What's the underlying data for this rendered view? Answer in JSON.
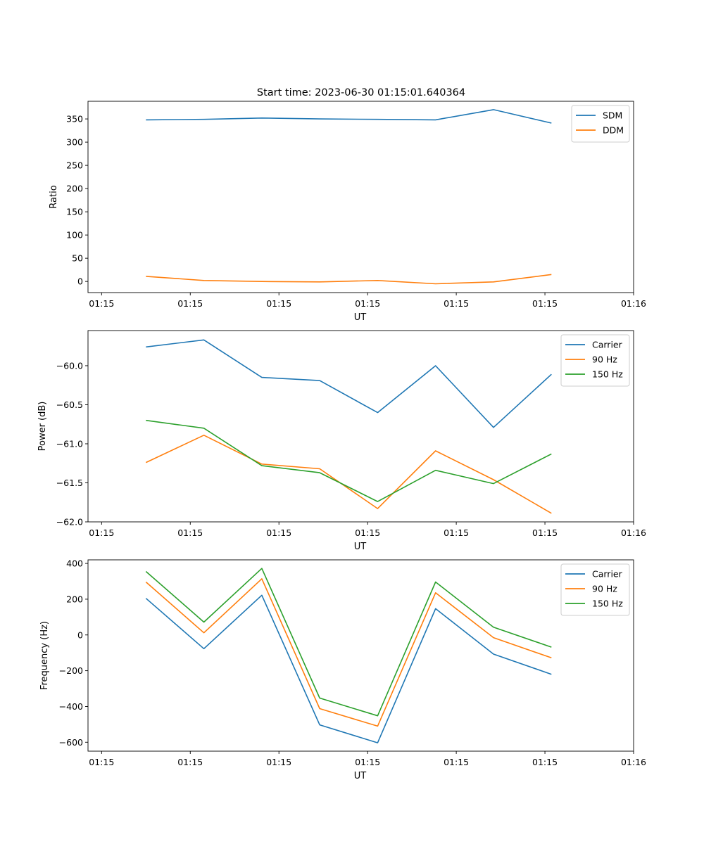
{
  "title": "Start time: 2023-06-30 01:15:01.640364",
  "colors": {
    "blue": "#1f77b4",
    "orange": "#ff7f0e",
    "green": "#2ca02c"
  },
  "chart_data": [
    {
      "type": "line",
      "xlabel": "UT",
      "ylabel": "Ratio",
      "legend": "top-right",
      "grid": false,
      "xlim": [
        -0.23,
        9.0
      ],
      "xticks": [
        0,
        1.5,
        3,
        4.5,
        6,
        7.5,
        9
      ],
      "xtick_labels": [
        "01:15",
        "01:15",
        "01:15",
        "01:15",
        "01:15",
        "01:15",
        "01:16"
      ],
      "ylim": [
        -24,
        388
      ],
      "yticks": [
        0,
        50,
        100,
        150,
        200,
        250,
        300,
        350
      ],
      "ytick_labels": [
        "0",
        "50",
        "100",
        "150",
        "200",
        "250",
        "300",
        "350"
      ],
      "x": [
        0.75,
        1.73,
        2.71,
        3.69,
        4.67,
        5.65,
        6.63,
        7.61
      ],
      "series": [
        {
          "name": "SDM",
          "color": "#1f77b4",
          "values": [
            348,
            349,
            352,
            350,
            349,
            348,
            370,
            341
          ]
        },
        {
          "name": "DDM",
          "color": "#ff7f0e",
          "values": [
            11,
            2,
            0,
            -1,
            2,
            -5,
            -1,
            15
          ]
        }
      ]
    },
    {
      "type": "line",
      "xlabel": "UT",
      "ylabel": "Power (dB)",
      "legend": "top-right",
      "grid": false,
      "xlim": [
        -0.23,
        9.0
      ],
      "xticks": [
        0,
        1.5,
        3,
        4.5,
        6,
        7.5,
        9
      ],
      "xtick_labels": [
        "01:15",
        "01:15",
        "01:15",
        "01:15",
        "01:15",
        "01:15",
        "01:16"
      ],
      "ylim": [
        -62.0,
        -59.55
      ],
      "yticks": [
        -62.0,
        -61.5,
        -61.0,
        -60.5,
        -60.0
      ],
      "ytick_labels": [
        "−62.0",
        "−61.5",
        "−61.0",
        "−60.5",
        "−60.0"
      ],
      "x": [
        0.75,
        1.73,
        2.71,
        3.69,
        4.67,
        5.65,
        6.63,
        7.61
      ],
      "series": [
        {
          "name": "Carrier",
          "color": "#1f77b4",
          "values": [
            -59.76,
            -59.67,
            -60.15,
            -60.19,
            -60.6,
            -60.0,
            -60.79,
            -60.11
          ]
        },
        {
          "name": "90 Hz",
          "color": "#ff7f0e",
          "values": [
            -61.24,
            -60.89,
            -61.26,
            -61.32,
            -61.83,
            -61.09,
            -61.46,
            -61.89
          ]
        },
        {
          "name": "150 Hz",
          "color": "#2ca02c",
          "values": [
            -60.7,
            -60.8,
            -61.28,
            -61.37,
            -61.74,
            -61.34,
            -61.51,
            -61.13
          ]
        }
      ]
    },
    {
      "type": "line",
      "xlabel": "UT",
      "ylabel": "Frequency (Hz)",
      "legend": "top-right",
      "grid": false,
      "xlim": [
        -0.23,
        9.0
      ],
      "xticks": [
        0,
        1.5,
        3,
        4.5,
        6,
        7.5,
        9
      ],
      "xtick_labels": [
        "01:15",
        "01:15",
        "01:15",
        "01:15",
        "01:15",
        "01:15",
        "01:16"
      ],
      "ylim": [
        -650,
        420
      ],
      "yticks": [
        -600,
        -400,
        -200,
        0,
        200,
        400
      ],
      "ytick_labels": [
        "−600",
        "−400",
        "−200",
        "0",
        "200",
        "400"
      ],
      "x": [
        0.75,
        1.73,
        2.71,
        3.69,
        4.67,
        5.65,
        6.63,
        7.61
      ],
      "series": [
        {
          "name": "Carrier",
          "color": "#1f77b4",
          "values": [
            205,
            -77,
            222,
            -503,
            -603,
            147,
            -107,
            -220
          ]
        },
        {
          "name": "90 Hz",
          "color": "#ff7f0e",
          "values": [
            296,
            12,
            314,
            -412,
            -510,
            236,
            -15,
            -128
          ]
        },
        {
          "name": "150 Hz",
          "color": "#2ca02c",
          "values": [
            355,
            72,
            372,
            -353,
            -452,
            296,
            43,
            -68
          ]
        }
      ]
    }
  ]
}
